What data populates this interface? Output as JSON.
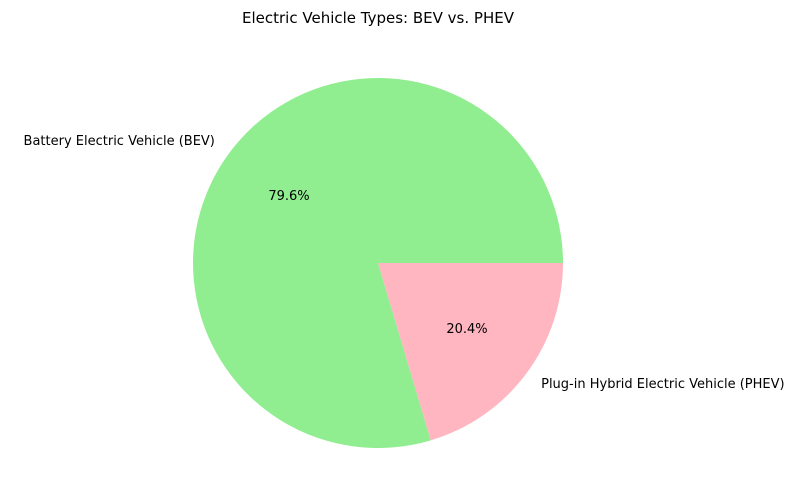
{
  "chart_data": {
    "type": "pie",
    "title": "Electric Vehicle Types: BEV vs. PHEV",
    "slices": [
      {
        "label": "Battery Electric Vehicle (BEV)",
        "value": 79.6,
        "pct_label": "79.6%",
        "color": "#90ee90"
      },
      {
        "label": "Plug-in Hybrid Electric Vehicle (PHEV)",
        "value": 20.4,
        "pct_label": "20.4%",
        "color": "#ffb6c1"
      }
    ],
    "start_angle_deg": 0,
    "direction": "counterclockwise",
    "legend": "none"
  }
}
